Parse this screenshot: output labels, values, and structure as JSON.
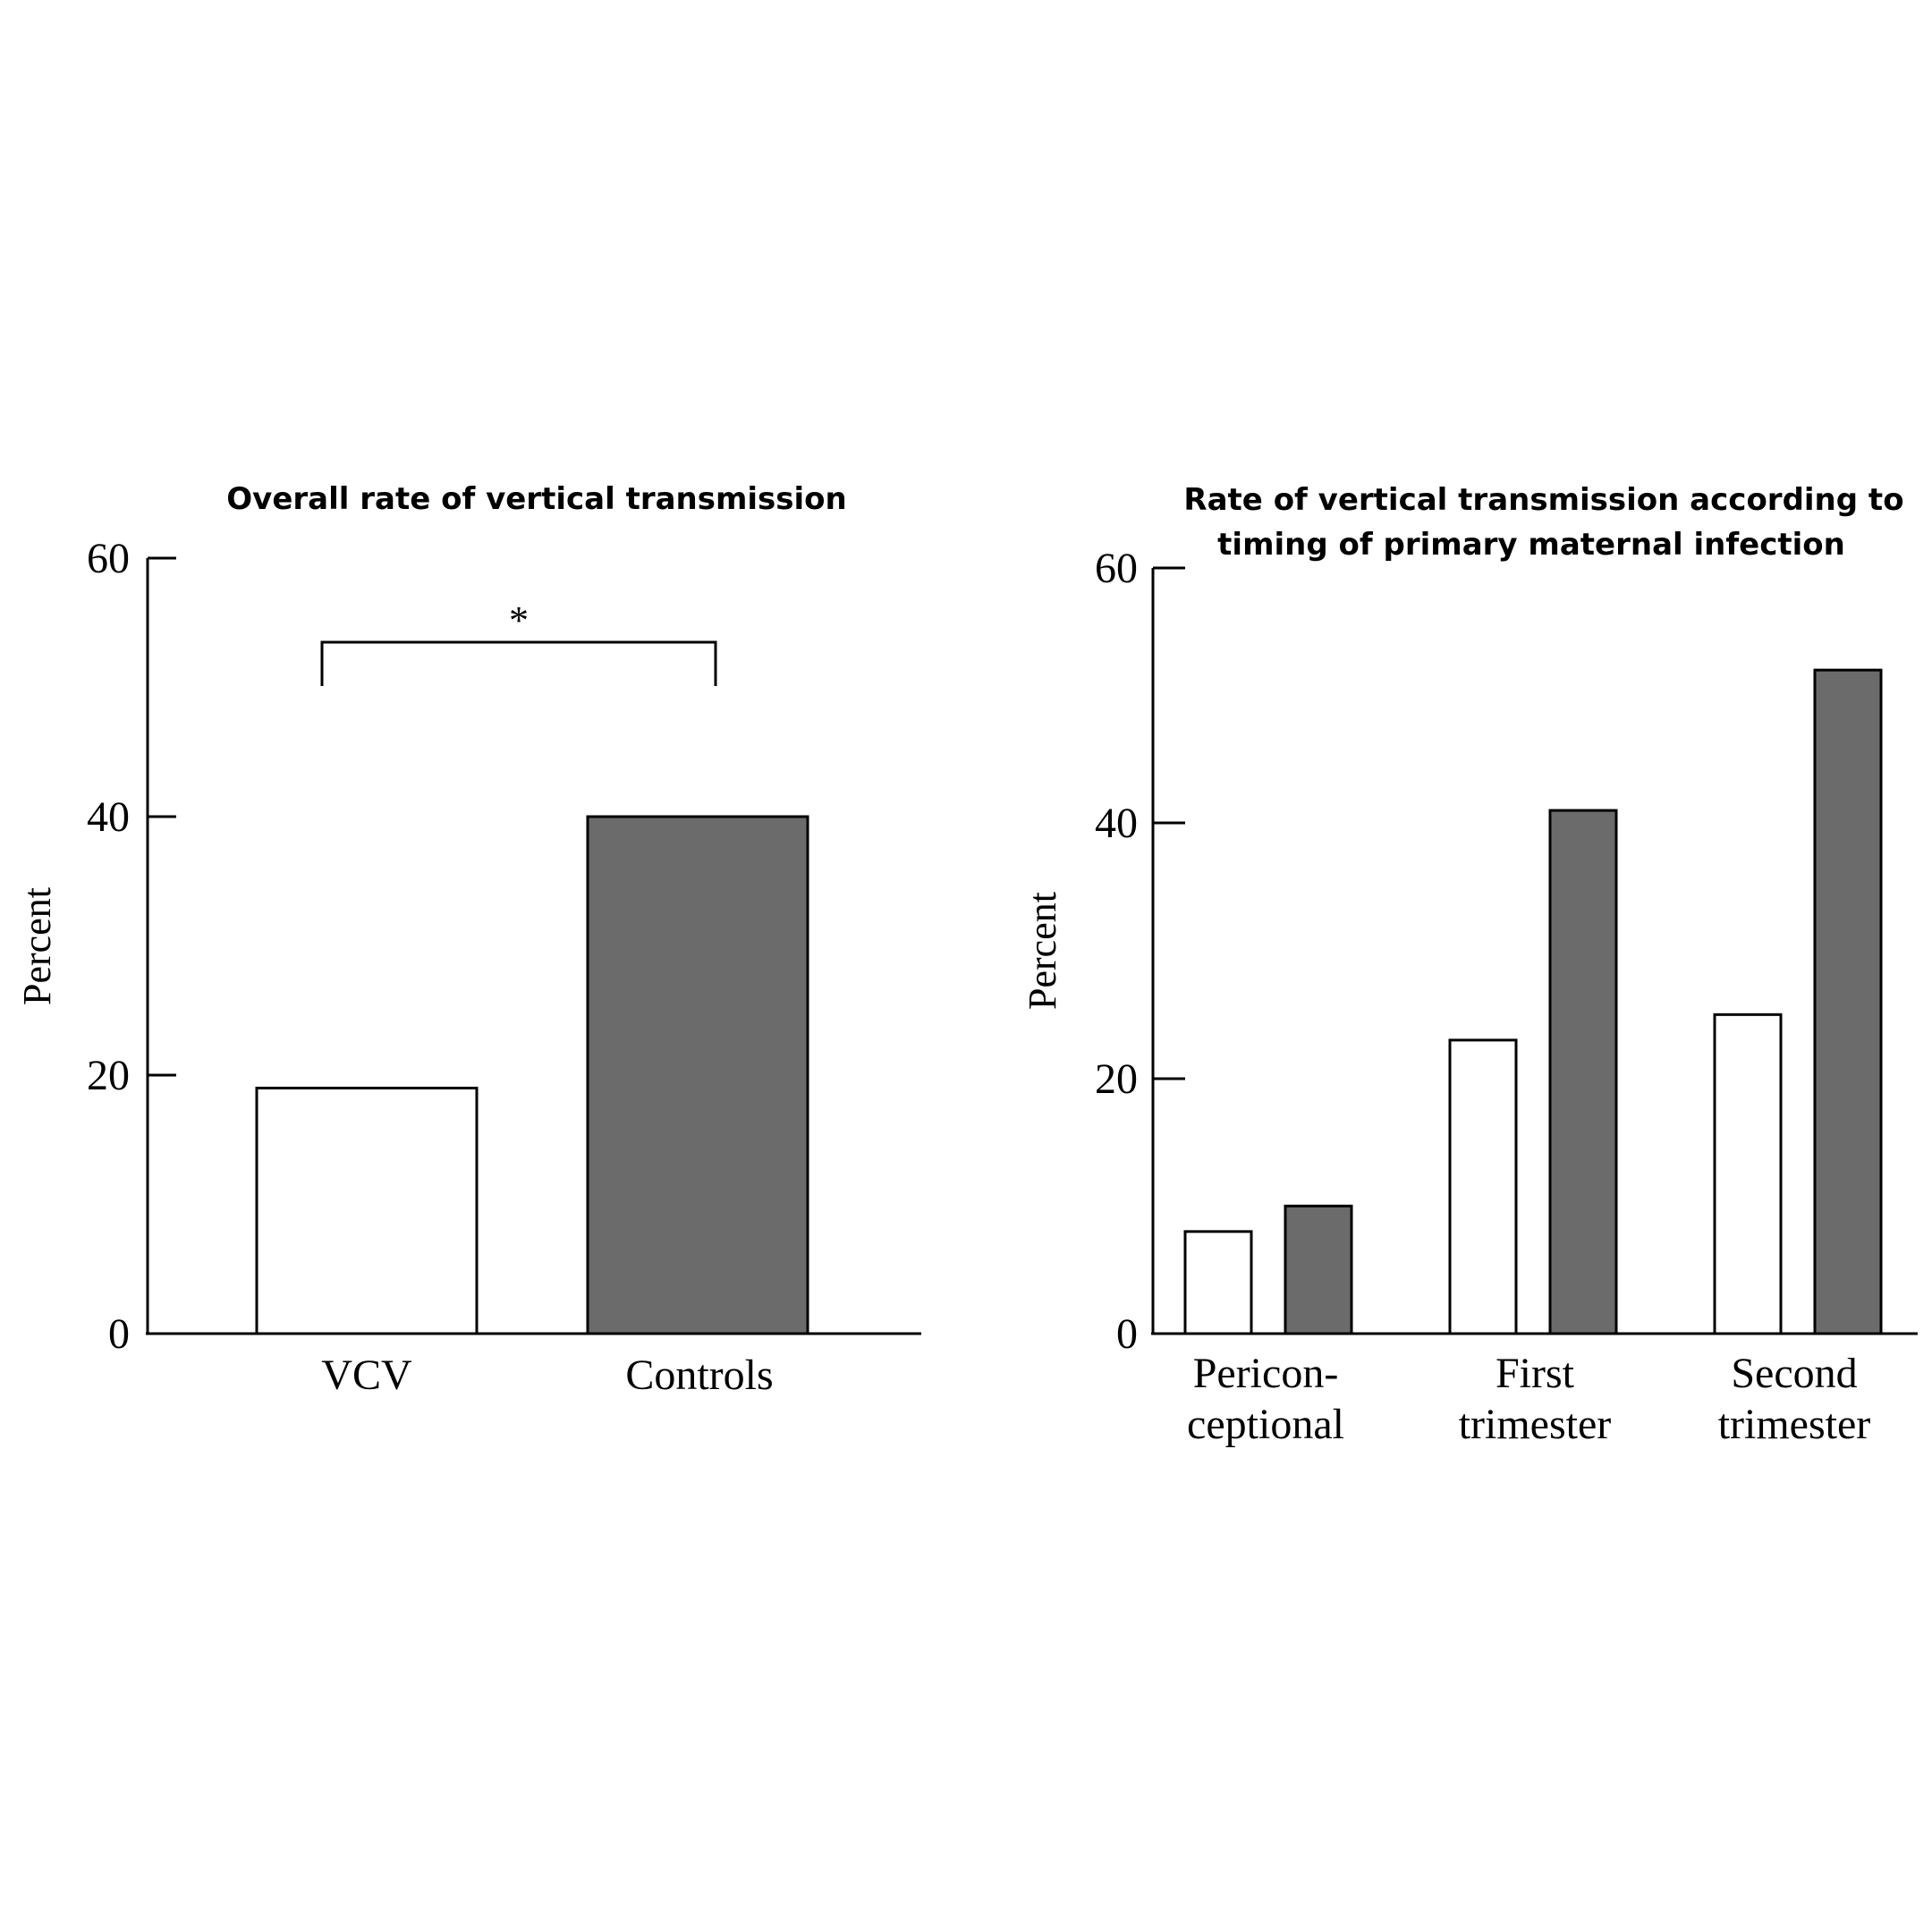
{
  "colors": {
    "white_bar": "#ffffff",
    "gray_bar": "#6b6b6b",
    "stroke": "#000000"
  },
  "chart_data": [
    {
      "type": "bar",
      "title": "Overall rate of vertical transmission",
      "ylabel": "Percent",
      "ylim": [
        0,
        60
      ],
      "yticks": [
        "0",
        "20",
        "40",
        "60"
      ],
      "categories": [
        "VCV",
        "Controls"
      ],
      "values": [
        19,
        40
      ],
      "bar_colors": [
        "#ffffff",
        "#6b6b6b"
      ],
      "significance": {
        "label": "*",
        "between": [
          "VCV",
          "Controls"
        ]
      }
    },
    {
      "type": "bar",
      "title": [
        "Rate of vertical transmission according to",
        "timing of primary maternal infection"
      ],
      "ylabel": "Percent",
      "ylim": [
        0,
        60
      ],
      "yticks": [
        "0",
        "20",
        "40",
        "60"
      ],
      "categories": [
        [
          "Pericon-",
          "ceptional"
        ],
        [
          "First",
          "trimester"
        ],
        [
          "Second",
          "trimester"
        ]
      ],
      "series": [
        {
          "values": [
            8,
            23,
            25
          ],
          "color": "#ffffff"
        },
        {
          "values": [
            10,
            41,
            52
          ],
          "color": "#6b6b6b"
        }
      ]
    }
  ]
}
